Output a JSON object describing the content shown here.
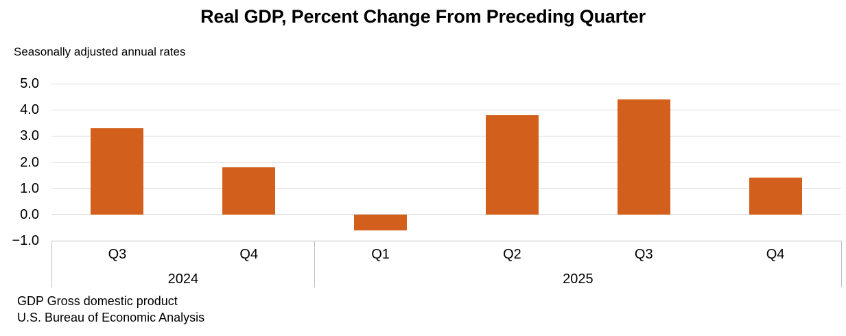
{
  "chart_data": {
    "type": "bar",
    "title": "Real GDP, Percent Change From Preceding Quarter",
    "subtitle": "Seasonally adjusted annual rates",
    "ylabel": "",
    "xlabel": "",
    "ylim": [
      -1.0,
      5.0
    ],
    "y_tick_step": 1.0,
    "y_tick_labels": [
      "5.0",
      "4.0",
      "3.0",
      "2.0",
      "1.0",
      "0.0",
      "−1.0"
    ],
    "grid": "horizontal",
    "legend": "none",
    "bar_color": "#d2601c",
    "gridline_color": "#d9d9d9",
    "axis_color": "#bfbfbf",
    "groups": [
      {
        "year": "2024",
        "quarters": [
          "Q3",
          "Q4"
        ],
        "values": [
          3.3,
          1.8
        ]
      },
      {
        "year": "2025",
        "quarters": [
          "Q1",
          "Q2",
          "Q3",
          "Q4"
        ],
        "values": [
          -0.6,
          3.8,
          4.4,
          1.4
        ]
      }
    ],
    "categories": [
      "2024 Q3",
      "2024 Q4",
      "2025 Q1",
      "2025 Q2",
      "2025 Q3",
      "2025 Q4"
    ],
    "values": [
      3.3,
      1.8,
      -0.6,
      3.8,
      4.4,
      1.4
    ],
    "footnotes": [
      "GDP Gross domestic product",
      "U.S. Bureau of Economic Analysis"
    ]
  }
}
